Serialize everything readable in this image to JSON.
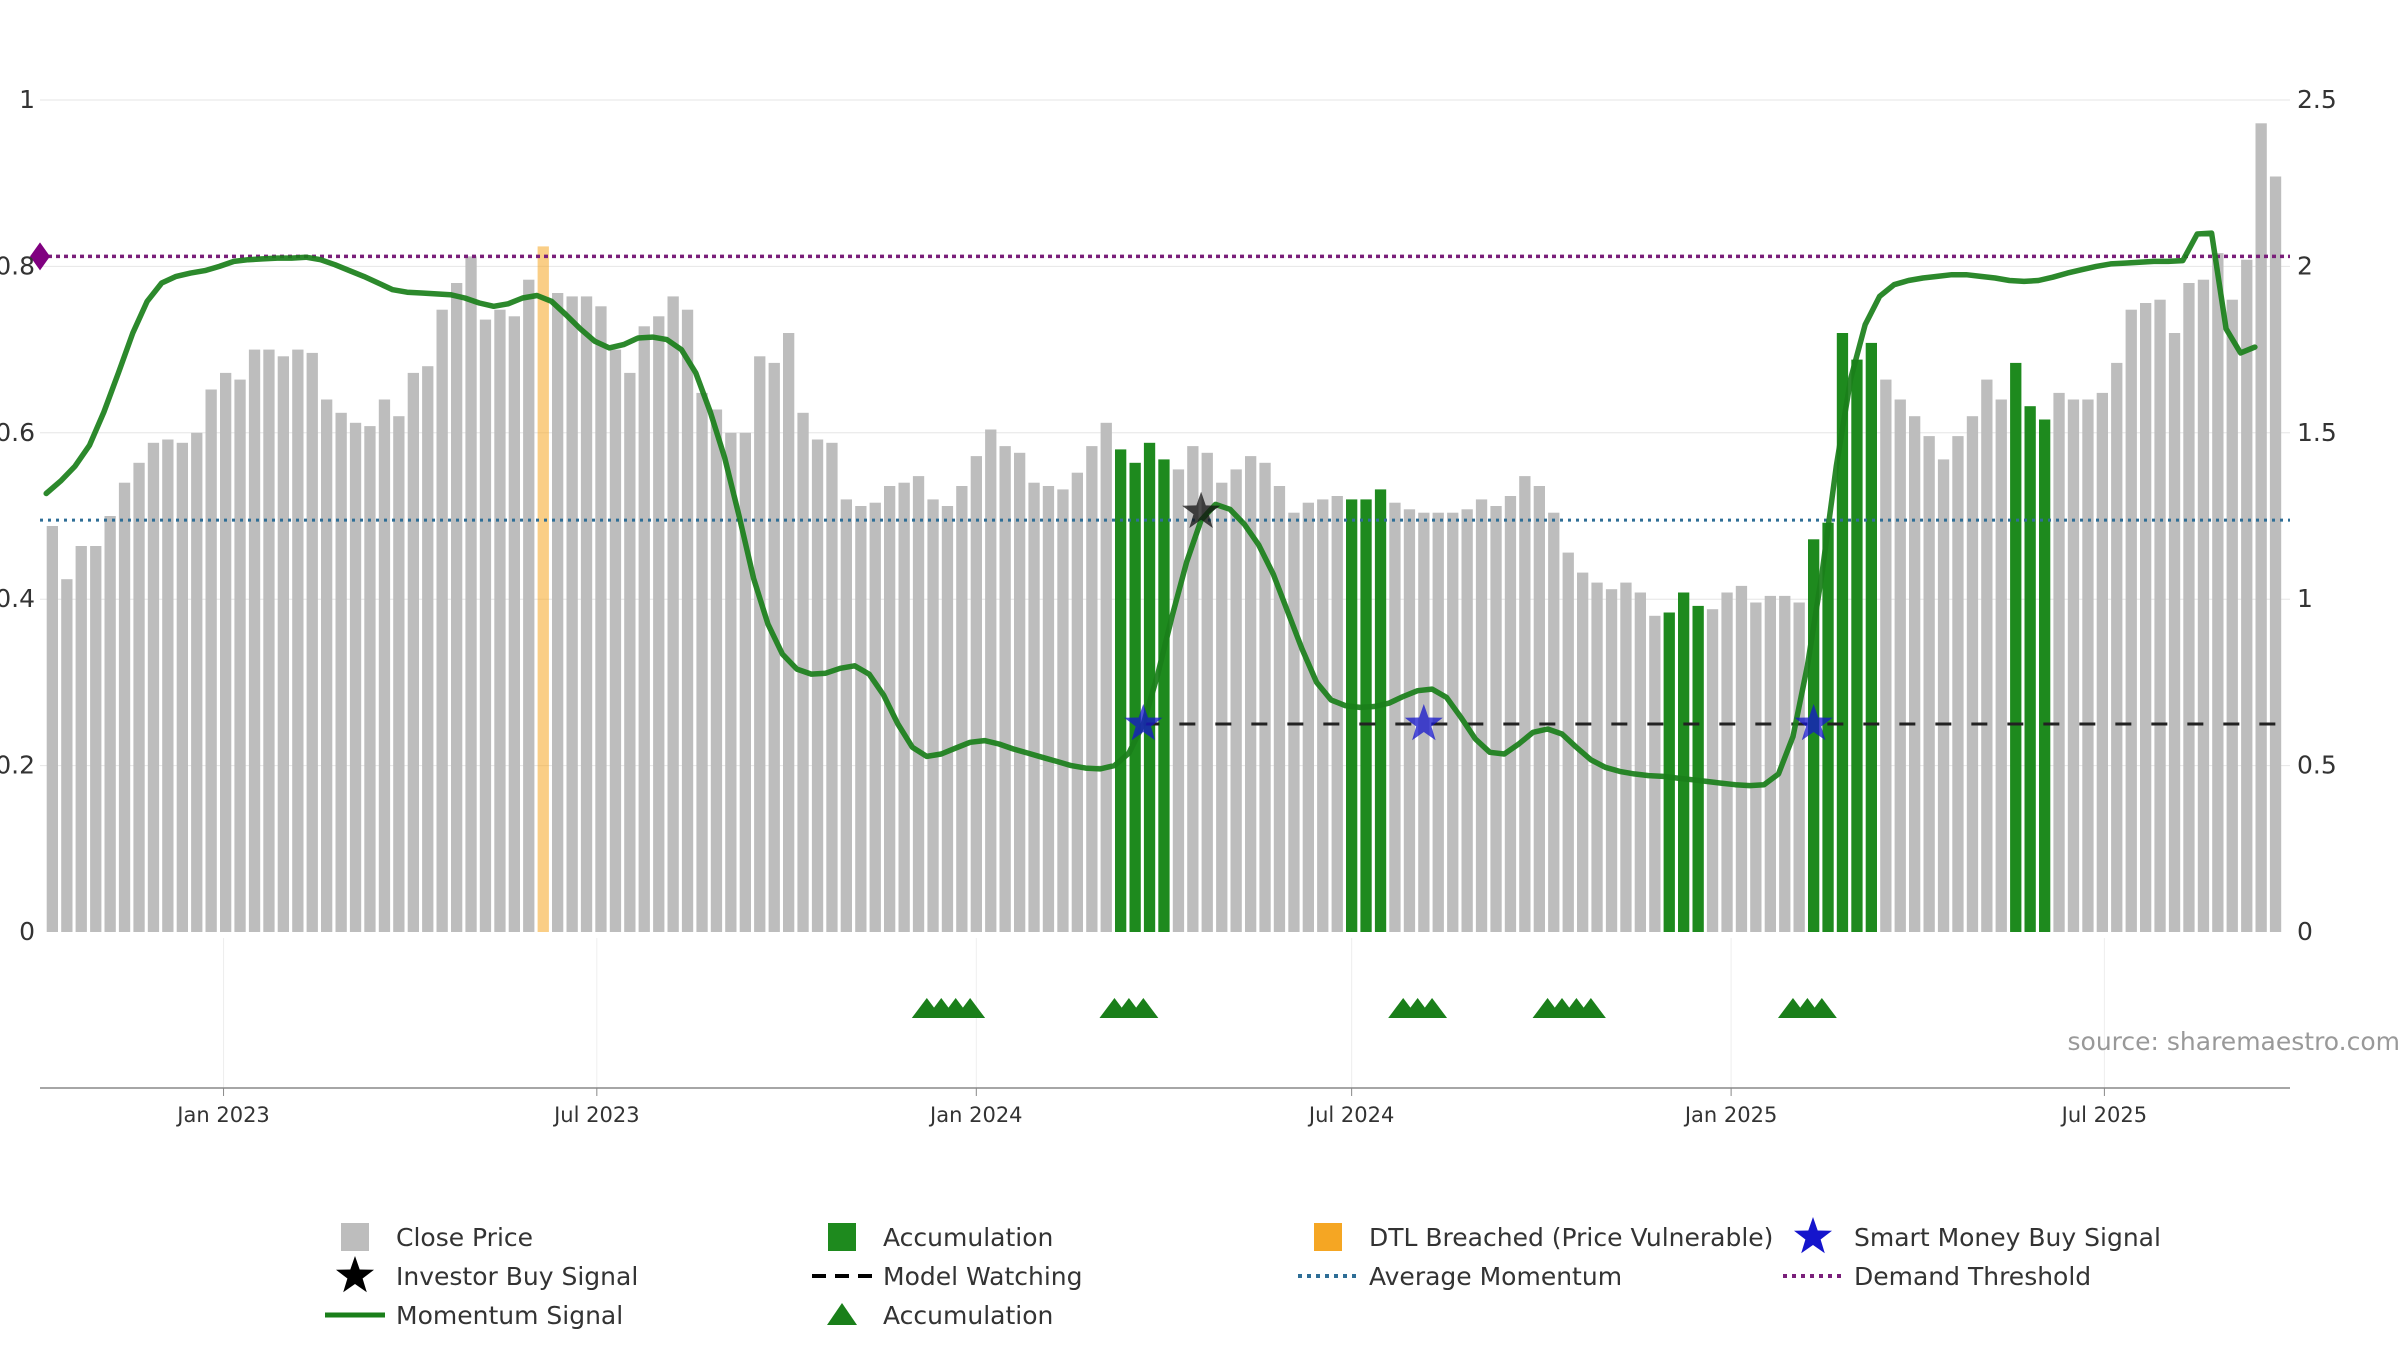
{
  "source": "source: sharemaestro.com",
  "chart_data": {
    "type": "bar",
    "left_axis": {
      "ylim": [
        0,
        1
      ],
      "ticks": [
        "0",
        "0.2",
        "0.4",
        "0.6",
        "0.8",
        "1"
      ]
    },
    "right_axis": {
      "ylim": [
        0,
        2.5
      ],
      "ticks": [
        "0",
        "0.5",
        "1",
        "1.5",
        "2",
        "2.5"
      ]
    },
    "x_axis": {
      "start": "2022-10-04",
      "end": "2025-09-29",
      "ticks": [
        {
          "date": "2023-01-01",
          "label": "Jan 2023"
        },
        {
          "date": "2023-07-01",
          "label": "Jul 2023"
        },
        {
          "date": "2024-01-01",
          "label": "Jan 2024"
        },
        {
          "date": "2024-07-01",
          "label": "Jul 2024"
        },
        {
          "date": "2025-01-01",
          "label": "Jan 2025"
        },
        {
          "date": "2025-07-01",
          "label": "Jul 2025"
        }
      ]
    },
    "grid": true,
    "bars": {
      "start": "2022-10-10",
      "interval_days": 7,
      "values": [
        1.22,
        1.06,
        1.16,
        1.16,
        1.25,
        1.35,
        1.41,
        1.47,
        1.48,
        1.47,
        1.5,
        1.63,
        1.68,
        1.66,
        1.75,
        1.75,
        1.73,
        1.75,
        1.74,
        1.6,
        1.56,
        1.53,
        1.52,
        1.6,
        1.55,
        1.68,
        1.7,
        1.87,
        1.95,
        2.03,
        1.84,
        1.87,
        1.85,
        1.96,
        2.06,
        1.92,
        1.91,
        1.91,
        1.88,
        1.75,
        1.68,
        1.82,
        1.85,
        1.91,
        1.87,
        1.62,
        1.57,
        1.5,
        1.5,
        1.73,
        1.71,
        1.8,
        1.56,
        1.48,
        1.47,
        1.3,
        1.28,
        1.29,
        1.34,
        1.35,
        1.37,
        1.3,
        1.28,
        1.34,
        1.43,
        1.51,
        1.46,
        1.44,
        1.35,
        1.34,
        1.33,
        1.38,
        1.46,
        1.53,
        1.45,
        1.41,
        1.47,
        1.42,
        1.39,
        1.46,
        1.44,
        1.35,
        1.39,
        1.43,
        1.41,
        1.34,
        1.26,
        1.29,
        1.3,
        1.31,
        1.3,
        1.3,
        1.33,
        1.29,
        1.27,
        1.26,
        1.26,
        1.26,
        1.27,
        1.3,
        1.28,
        1.31,
        1.37,
        1.34,
        1.26,
        1.14,
        1.08,
        1.05,
        1.03,
        1.05,
        1.02,
        0.95,
        0.96,
        1.02,
        0.98,
        0.97,
        1.02,
        1.04,
        0.99,
        1.01,
        1.01,
        0.99,
        1.18,
        1.23,
        1.8,
        1.72,
        1.77,
        1.66,
        1.6,
        1.55,
        1.49,
        1.42,
        1.49,
        1.55,
        1.66,
        1.6,
        1.71,
        1.58,
        1.54,
        1.62,
        1.6,
        1.6,
        1.62,
        1.71,
        1.87,
        1.89,
        1.9,
        1.8,
        1.95,
        1.96,
        2.04,
        1.9,
        2.02,
        2.43,
        2.27
      ],
      "color_default": "#bdbdbd",
      "accumulation_indices": [
        74,
        75,
        76,
        77,
        90,
        91,
        92,
        112,
        113,
        114,
        122,
        123,
        124,
        125,
        126,
        136,
        137,
        138
      ],
      "dtl_indices": [
        34,
        155,
        156
      ]
    },
    "series": [
      {
        "name": "Momentum Signal",
        "axis": "left",
        "color": "#1a7f1a",
        "points": [
          [
            "2022-10-07",
            0.527
          ],
          [
            "2022-10-14",
            0.542
          ],
          [
            "2022-10-21",
            0.56
          ],
          [
            "2022-10-28",
            0.585
          ],
          [
            "2022-11-04",
            0.625
          ],
          [
            "2022-11-11",
            0.672
          ],
          [
            "2022-11-18",
            0.72
          ],
          [
            "2022-11-25",
            0.758
          ],
          [
            "2022-12-02",
            0.78
          ],
          [
            "2022-12-09",
            0.788
          ],
          [
            "2022-12-16",
            0.792
          ],
          [
            "2022-12-23",
            0.795
          ],
          [
            "2022-12-30",
            0.8
          ],
          [
            "2023-01-06",
            0.806
          ],
          [
            "2023-01-13",
            0.808
          ],
          [
            "2023-01-20",
            0.809
          ],
          [
            "2023-01-27",
            0.81
          ],
          [
            "2023-02-03",
            0.81
          ],
          [
            "2023-02-10",
            0.811
          ],
          [
            "2023-02-17",
            0.808
          ],
          [
            "2023-02-24",
            0.802
          ],
          [
            "2023-03-03",
            0.795
          ],
          [
            "2023-03-10",
            0.788
          ],
          [
            "2023-03-17",
            0.78
          ],
          [
            "2023-03-24",
            0.772
          ],
          [
            "2023-03-31",
            0.769
          ],
          [
            "2023-04-07",
            0.768
          ],
          [
            "2023-04-14",
            0.767
          ],
          [
            "2023-04-21",
            0.766
          ],
          [
            "2023-04-28",
            0.762
          ],
          [
            "2023-05-05",
            0.756
          ],
          [
            "2023-05-12",
            0.752
          ],
          [
            "2023-05-19",
            0.755
          ],
          [
            "2023-05-26",
            0.762
          ],
          [
            "2023-06-02",
            0.765
          ],
          [
            "2023-06-09",
            0.758
          ],
          [
            "2023-06-16",
            0.742
          ],
          [
            "2023-06-23",
            0.725
          ],
          [
            "2023-06-30",
            0.71
          ],
          [
            "2023-07-07",
            0.702
          ],
          [
            "2023-07-14",
            0.706
          ],
          [
            "2023-07-21",
            0.714
          ],
          [
            "2023-07-28",
            0.715
          ],
          [
            "2023-08-04",
            0.712
          ],
          [
            "2023-08-11",
            0.7
          ],
          [
            "2023-08-18",
            0.672
          ],
          [
            "2023-08-25",
            0.625
          ],
          [
            "2023-09-01",
            0.57
          ],
          [
            "2023-09-08",
            0.5
          ],
          [
            "2023-09-15",
            0.425
          ],
          [
            "2023-09-22",
            0.37
          ],
          [
            "2023-09-29",
            0.334
          ],
          [
            "2023-10-06",
            0.316
          ],
          [
            "2023-10-13",
            0.31
          ],
          [
            "2023-10-20",
            0.311
          ],
          [
            "2023-10-27",
            0.317
          ],
          [
            "2023-11-03",
            0.32
          ],
          [
            "2023-11-10",
            0.31
          ],
          [
            "2023-11-17",
            0.285
          ],
          [
            "2023-11-24",
            0.25
          ],
          [
            "2023-12-01",
            0.222
          ],
          [
            "2023-12-08",
            0.211
          ],
          [
            "2023-12-15",
            0.214
          ],
          [
            "2023-12-22",
            0.221
          ],
          [
            "2023-12-29",
            0.228
          ],
          [
            "2024-01-05",
            0.23
          ],
          [
            "2024-01-12",
            0.226
          ],
          [
            "2024-01-19",
            0.22
          ],
          [
            "2024-01-26",
            0.215
          ],
          [
            "2024-02-02",
            0.21
          ],
          [
            "2024-02-09",
            0.205
          ],
          [
            "2024-02-16",
            0.2
          ],
          [
            "2024-02-23",
            0.197
          ],
          [
            "2024-03-01",
            0.196
          ],
          [
            "2024-03-08",
            0.2
          ],
          [
            "2024-03-15",
            0.215
          ],
          [
            "2024-03-22",
            0.25
          ],
          [
            "2024-03-29",
            0.31
          ],
          [
            "2024-04-05",
            0.38
          ],
          [
            "2024-04-12",
            0.445
          ],
          [
            "2024-04-19",
            0.495
          ],
          [
            "2024-04-26",
            0.514
          ],
          [
            "2024-05-03",
            0.508
          ],
          [
            "2024-05-10",
            0.49
          ],
          [
            "2024-05-17",
            0.465
          ],
          [
            "2024-05-24",
            0.43
          ],
          [
            "2024-05-31",
            0.385
          ],
          [
            "2024-06-07",
            0.34
          ],
          [
            "2024-06-14",
            0.3
          ],
          [
            "2024-06-21",
            0.279
          ],
          [
            "2024-06-28",
            0.272
          ],
          [
            "2024-07-05",
            0.27
          ],
          [
            "2024-07-12",
            0.271
          ],
          [
            "2024-07-19",
            0.275
          ],
          [
            "2024-07-26",
            0.283
          ],
          [
            "2024-08-02",
            0.29
          ],
          [
            "2024-08-09",
            0.292
          ],
          [
            "2024-08-16",
            0.282
          ],
          [
            "2024-08-23",
            0.258
          ],
          [
            "2024-08-30",
            0.232
          ],
          [
            "2024-09-06",
            0.216
          ],
          [
            "2024-09-13",
            0.214
          ],
          [
            "2024-09-20",
            0.226
          ],
          [
            "2024-09-27",
            0.24
          ],
          [
            "2024-10-04",
            0.244
          ],
          [
            "2024-10-11",
            0.238
          ],
          [
            "2024-10-18",
            0.222
          ],
          [
            "2024-10-25",
            0.207
          ],
          [
            "2024-11-01",
            0.198
          ],
          [
            "2024-11-08",
            0.193
          ],
          [
            "2024-11-15",
            0.19
          ],
          [
            "2024-11-22",
            0.188
          ],
          [
            "2024-11-29",
            0.187
          ],
          [
            "2024-12-06",
            0.185
          ],
          [
            "2024-12-13",
            0.183
          ],
          [
            "2024-12-20",
            0.181
          ],
          [
            "2024-12-27",
            0.179
          ],
          [
            "2025-01-03",
            0.177
          ],
          [
            "2025-01-10",
            0.176
          ],
          [
            "2025-01-17",
            0.177
          ],
          [
            "2025-01-24",
            0.19
          ],
          [
            "2025-01-31",
            0.235
          ],
          [
            "2025-02-07",
            0.32
          ],
          [
            "2025-02-14",
            0.43
          ],
          [
            "2025-02-21",
            0.56
          ],
          [
            "2025-02-28",
            0.665
          ],
          [
            "2025-03-07",
            0.73
          ],
          [
            "2025-03-14",
            0.764
          ],
          [
            "2025-03-21",
            0.778
          ],
          [
            "2025-03-28",
            0.783
          ],
          [
            "2025-04-04",
            0.786
          ],
          [
            "2025-04-11",
            0.788
          ],
          [
            "2025-04-18",
            0.79
          ],
          [
            "2025-04-25",
            0.79
          ],
          [
            "2025-05-02",
            0.788
          ],
          [
            "2025-05-09",
            0.786
          ],
          [
            "2025-05-16",
            0.783
          ],
          [
            "2025-05-23",
            0.782
          ],
          [
            "2025-05-30",
            0.783
          ],
          [
            "2025-06-06",
            0.787
          ],
          [
            "2025-06-13",
            0.792
          ],
          [
            "2025-06-20",
            0.796
          ],
          [
            "2025-06-27",
            0.8
          ],
          [
            "2025-07-04",
            0.803
          ],
          [
            "2025-07-11",
            0.804
          ],
          [
            "2025-07-18",
            0.805
          ],
          [
            "2025-07-25",
            0.806
          ],
          [
            "2025-08-01",
            0.806
          ],
          [
            "2025-08-08",
            0.807
          ],
          [
            "2025-08-15",
            0.839
          ],
          [
            "2025-08-22",
            0.84
          ],
          [
            "2025-08-29",
            0.725
          ],
          [
            "2025-09-05",
            0.696
          ],
          [
            "2025-09-12",
            0.703
          ]
        ]
      },
      {
        "name": "Average Momentum",
        "axis": "left",
        "color": "#2e6e96",
        "value": 0.495
      },
      {
        "name": "Demand Threshold",
        "axis": "left",
        "color": "#7a1f7a",
        "value": 0.812
      },
      {
        "name": "Model Watching",
        "axis": "left",
        "color": "#222222",
        "value": 0.25,
        "start": "2024-03-22"
      }
    ],
    "markers": {
      "smart_money_buy": {
        "color": "#1515cc",
        "points": [
          [
            "2024-03-22",
            0.25
          ],
          [
            "2024-08-05",
            0.25
          ],
          [
            "2025-02-10",
            0.25
          ]
        ]
      },
      "investor_buy": {
        "color": "#111111",
        "points": [
          [
            "2024-04-19",
            0.505
          ]
        ]
      },
      "accumulation_triangles": {
        "color": "#1a7f1a",
        "dates": [
          "2023-12-08",
          "2023-12-15",
          "2023-12-22",
          "2023-12-29",
          "2024-03-08",
          "2024-03-15",
          "2024-03-22",
          "2024-07-26",
          "2024-08-02",
          "2024-08-09",
          "2024-10-04",
          "2024-10-11",
          "2024-10-18",
          "2024-10-25",
          "2025-01-31",
          "2025-02-07",
          "2025-02-14"
        ]
      },
      "demand_marker": {
        "color": "#800080",
        "value": 0.812
      }
    },
    "legend": {
      "placement": "bottom",
      "items": [
        {
          "label": "Close Price",
          "symbol": "square",
          "color": "#bdbdbd"
        },
        {
          "label": "Accumulation",
          "symbol": "square",
          "color": "#1e8a1e"
        },
        {
          "label": "DTL Breached (Price Vulnerable)",
          "symbol": "square",
          "color": "#f5a623"
        },
        {
          "label": "Smart Money Buy Signal",
          "symbol": "star",
          "color": "#1515cc"
        },
        {
          "label": "Investor Buy Signal",
          "symbol": "star",
          "color": "#000000"
        },
        {
          "label": "Model Watching",
          "symbol": "dashed",
          "color": "#000000"
        },
        {
          "label": "Average Momentum",
          "symbol": "dotted",
          "color": "#2e6e96"
        },
        {
          "label": "Demand Threshold",
          "symbol": "dotted",
          "color": "#7a1f7a"
        },
        {
          "label": "Momentum Signal",
          "symbol": "line",
          "color": "#1a7f1a"
        },
        {
          "label": "Accumulation",
          "symbol": "triangle",
          "color": "#1a7f1a"
        }
      ]
    }
  }
}
